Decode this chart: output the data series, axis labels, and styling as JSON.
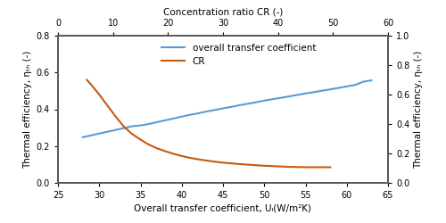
{
  "xl_min": 25,
  "xl_max": 65,
  "yl_min": 0,
  "yl_max": 0.8,
  "yr_min": 0,
  "yr_max": 1.0,
  "xtop_min": 0,
  "xtop_max": 60,
  "xlabel": "Overall transfer coefficient, Uₗ(W/m²K)",
  "ylabel_left": "Thermal efficiency, ηₜₕ (-)",
  "ylabel_right": "Thermal efficiency, ηₜₕ (-)",
  "xlabel_top": "Concentration ratio CR (-)",
  "blue_label": "overall transfer coefficient",
  "orange_label": "CR",
  "blue_color": "#5b9bd5",
  "orange_color": "#c55a11",
  "blue_x": [
    28,
    29,
    30,
    31,
    32,
    33,
    34,
    35,
    36,
    37,
    38,
    39,
    40,
    41,
    42,
    43,
    44,
    45,
    46,
    47,
    48,
    49,
    50,
    51,
    52,
    53,
    54,
    55,
    56,
    57,
    58,
    59,
    60,
    61,
    62,
    63
  ],
  "blue_y": [
    0.248,
    0.258,
    0.268,
    0.278,
    0.288,
    0.298,
    0.308,
    0.312,
    0.32,
    0.33,
    0.34,
    0.35,
    0.36,
    0.37,
    0.378,
    0.388,
    0.396,
    0.405,
    0.413,
    0.422,
    0.43,
    0.438,
    0.447,
    0.455,
    0.462,
    0.47,
    0.478,
    0.486,
    0.493,
    0.501,
    0.508,
    0.516,
    0.524,
    0.532,
    0.55,
    0.557
  ],
  "orange_x": [
    28.5,
    29,
    30,
    31,
    32,
    33,
    34,
    35,
    36,
    37,
    38,
    39,
    40,
    41,
    42,
    43,
    44,
    45,
    46,
    47,
    48,
    49,
    50,
    51,
    52,
    53,
    54,
    55,
    56,
    57,
    58
  ],
  "orange_y": [
    0.56,
    0.535,
    0.48,
    0.42,
    0.36,
    0.305,
    0.265,
    0.235,
    0.208,
    0.188,
    0.172,
    0.158,
    0.146,
    0.136,
    0.128,
    0.121,
    0.115,
    0.11,
    0.106,
    0.102,
    0.099,
    0.096,
    0.093,
    0.091,
    0.089,
    0.087,
    0.086,
    0.085,
    0.085,
    0.085,
    0.085
  ],
  "xticks_bottom": [
    25,
    30,
    35,
    40,
    45,
    50,
    55,
    60,
    65
  ],
  "xticks_top": [
    0,
    10,
    20,
    30,
    40,
    50,
    60
  ],
  "yticks_left": [
    0,
    0.2,
    0.4,
    0.6,
    0.8
  ],
  "yticks_right": [
    0,
    0.2,
    0.4,
    0.6,
    0.8,
    1.0
  ],
  "background_color": "#ffffff",
  "spine_color": "#5a5a5a",
  "linewidth": 1.5,
  "spine_linewidth": 1.2,
  "tick_labelsize": 7,
  "axis_labelsize": 7.5,
  "legend_fontsize": 7.5
}
